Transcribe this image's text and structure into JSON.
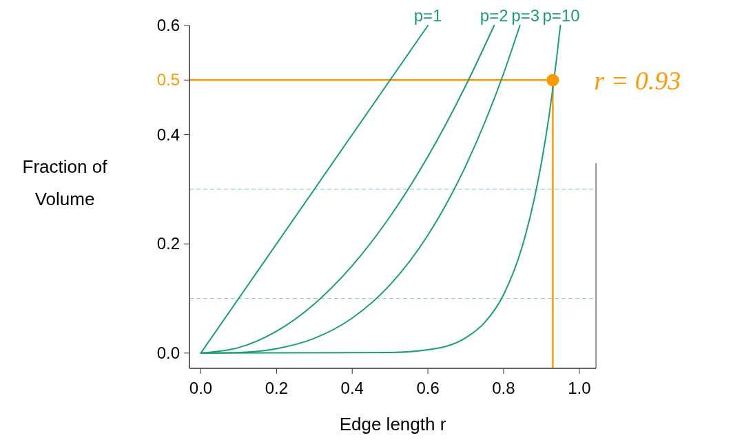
{
  "chart_data": {
    "type": "line",
    "xlabel": "Edge length r",
    "ylabel": "Fraction of\nVolume",
    "xlim": [
      -0.03,
      1.044
    ],
    "xticks": [
      {
        "value": 0,
        "label": "0.0"
      },
      0.2,
      0.4,
      0.6,
      0.8,
      {
        "value": 1,
        "label": "1.0"
      }
    ],
    "ylim": [
      -0.028,
      0.6
    ],
    "yticks": [
      {
        "value": 0,
        "label": "0.0"
      },
      0.2,
      0.4,
      0.5,
      0.6
    ],
    "series": [
      {
        "name": "p=1",
        "color": "#1a9e74",
        "x": [
          0,
          0.6
        ],
        "values": [
          0,
          0.6
        ]
      },
      {
        "name": "p=2",
        "color": "#1a9e74",
        "x": [
          0,
          0.1,
          0.2,
          0.3,
          0.4,
          0.5,
          0.6,
          0.7,
          0.775
        ],
        "values": [
          0,
          0.01,
          0.04,
          0.09,
          0.16,
          0.25,
          0.36,
          0.49,
          0.6
        ]
      },
      {
        "name": "p=3",
        "color": "#1a9e74",
        "x": [
          0,
          0.1,
          0.2,
          0.3,
          0.4,
          0.5,
          0.6,
          0.7,
          0.8,
          0.843
        ],
        "values": [
          0,
          0.001,
          0.008,
          0.027,
          0.064,
          0.125,
          0.216,
          0.343,
          0.512,
          0.6
        ]
      },
      {
        "name": "p=10",
        "color": "#1a9e74",
        "x": [
          0,
          0.5,
          0.6,
          0.7,
          0.75,
          0.8,
          0.85,
          0.88,
          0.9,
          0.92,
          0.93,
          0.95
        ],
        "values": [
          0,
          0.001,
          0.006,
          0.028,
          0.056,
          0.107,
          0.197,
          0.279,
          0.349,
          0.434,
          0.484,
          0.6
        ]
      },
      {
        "type": "scatter",
        "marker": "circle",
        "color": "#ff9900",
        "x": [
          0.93
        ],
        "values": [
          0.5
        ]
      }
    ],
    "ref_lines": [
      {
        "axis": "y",
        "value": 0.5,
        "color": "#ff9900",
        "line_style": "solid"
      },
      {
        "axis": "x",
        "value": 0.93,
        "color": "#ff9900",
        "line_style": "solid"
      },
      {
        "axis": "y",
        "value": 0.3,
        "color": "#9ecae1",
        "line_style": "dashed"
      },
      {
        "axis": "y",
        "value": 0.1,
        "color": "#9ecae1",
        "line_style": "dashed"
      }
    ],
    "annotations": [
      {
        "text": "r = 0.93",
        "x": 0.93,
        "y": 0.5
      }
    ],
    "marker": "none",
    "line_style": "solid"
  }
}
